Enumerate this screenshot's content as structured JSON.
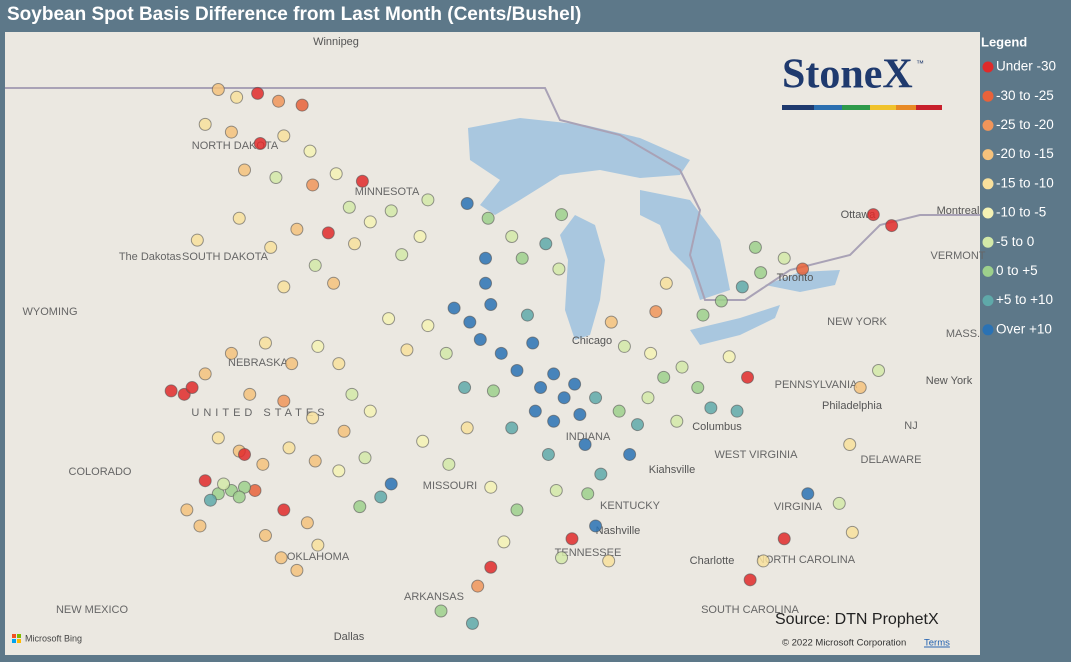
{
  "title": "Soybean Spot Basis Difference from Last Month (Cents/Bushel)",
  "legend": {
    "title": "Legend",
    "items": [
      {
        "label": "Under -30",
        "color": "#e02a2a"
      },
      {
        "label": "-30 to -25",
        "color": "#e8623a"
      },
      {
        "label": "-25 to -20",
        "color": "#f0955a"
      },
      {
        "label": "-20 to -15",
        "color": "#f5c27c"
      },
      {
        "label": "-15 to -10",
        "color": "#f8e09c"
      },
      {
        "label": "-10 to -5",
        "color": "#f4f2b4"
      },
      {
        "label": "-5 to 0",
        "color": "#d3e9a8"
      },
      {
        "label": "0 to +5",
        "color": "#9dd08c"
      },
      {
        "label": "+5 to +10",
        "color": "#5fa9a9"
      },
      {
        "label": "Over +10",
        "color": "#2a72b4"
      }
    ]
  },
  "logo": {
    "name": "StoneX",
    "mark": "™"
  },
  "labels": [
    "Winnipeg",
    "NORTH DAKOTA",
    "MINNESOTA",
    "The Dakotas",
    "SOUTH DAKOTA",
    "WYOMING",
    "NEBRASKA",
    "UNITED STATES",
    "COLORADO",
    "MISSOURI",
    "KENTUCKY",
    "TENNESSEE",
    "OKLAHOMA",
    "ARKANSAS",
    "NEW MEXICO",
    "Dallas",
    "Chicago",
    "Ottawa",
    "Montreal",
    "VERMONT",
    "Toronto",
    "NEW YORK",
    "MASS.",
    "PENNSYLVANIA",
    "New York",
    "Philadelphia",
    "NJ",
    "Columbus",
    "INDIANA",
    "WEST VIRGINIA",
    "DELAWARE",
    "Kiahsville",
    "VIRGINIA",
    "Nashville",
    "Charlotte",
    "NORTH CAROLINA",
    "SOUTH CAROLINA"
  ],
  "source": "Source: DTN ProphetX",
  "copyright": "© 2022 Microsoft Corporation",
  "terms": "Terms",
  "attribution": "Microsoft Bing",
  "points": [
    [
      -101,
      48.7,
      3
    ],
    [
      -100.3,
      48.5,
      4
    ],
    [
      -99.5,
      48.6,
      0
    ],
    [
      -98.7,
      48.4,
      2
    ],
    [
      -97.8,
      48.3,
      1
    ],
    [
      -100.5,
      47.6,
      3
    ],
    [
      -99.4,
      47.3,
      0
    ],
    [
      -98.5,
      47.5,
      4
    ],
    [
      -97.5,
      47.1,
      5
    ],
    [
      -100,
      46.6,
      3
    ],
    [
      -98.8,
      46.4,
      6
    ],
    [
      -97.4,
      46.2,
      2
    ],
    [
      -101.5,
      47.8,
      4
    ],
    [
      -96.5,
      46.5,
      5
    ],
    [
      -96,
      45.6,
      6
    ],
    [
      -95.2,
      45.2,
      5
    ],
    [
      -94.4,
      45.5,
      6
    ],
    [
      -95.5,
      46.3,
      0
    ],
    [
      -98,
      45,
      3
    ],
    [
      -99,
      44.5,
      4
    ],
    [
      -97.3,
      44,
      6
    ],
    [
      -96.6,
      43.5,
      3
    ],
    [
      -95.8,
      44.6,
      4
    ],
    [
      -98.5,
      43.4,
      4
    ],
    [
      -100.2,
      45.3,
      4
    ],
    [
      -101.8,
      44.7,
      4
    ],
    [
      -96.8,
      44.9,
      0
    ],
    [
      -94,
      44.3,
      6
    ],
    [
      -93.3,
      44.8,
      5
    ],
    [
      -93,
      45.8,
      6
    ],
    [
      -91.5,
      45.7,
      9
    ],
    [
      -90.7,
      45.3,
      7
    ],
    [
      -89.8,
      44.8,
      6
    ],
    [
      -89.4,
      44.2,
      7
    ],
    [
      -88.5,
      44.6,
      8
    ],
    [
      -88.0,
      43.9,
      6
    ],
    [
      -90.8,
      44.2,
      9
    ],
    [
      -87.9,
      45.4,
      7
    ],
    [
      -92,
      42.8,
      9
    ],
    [
      -91.4,
      42.4,
      9
    ],
    [
      -91,
      41.9,
      9
    ],
    [
      -90.6,
      42.9,
      9
    ],
    [
      -90.2,
      41.5,
      9
    ],
    [
      -89.6,
      41,
      9
    ],
    [
      -89,
      41.8,
      9
    ],
    [
      -88.7,
      40.5,
      9
    ],
    [
      -88.2,
      40.9,
      9
    ],
    [
      -87.8,
      40.2,
      9
    ],
    [
      -87.4,
      40.6,
      9
    ],
    [
      -90.8,
      43.5,
      9
    ],
    [
      -89.2,
      42.6,
      8
    ],
    [
      -88.9,
      39.8,
      9
    ],
    [
      -88.2,
      39.5,
      9
    ],
    [
      -89.8,
      39.3,
      8
    ],
    [
      -90.5,
      40.4,
      7
    ],
    [
      -92.3,
      41.5,
      6
    ],
    [
      -93,
      42.3,
      5
    ],
    [
      -93.8,
      41.6,
      4
    ],
    [
      -94.5,
      42.5,
      5
    ],
    [
      -91.6,
      40.5,
      8
    ],
    [
      -87.2,
      39.7,
      9
    ],
    [
      -86.6,
      40.2,
      8
    ],
    [
      -87,
      38.8,
      9
    ],
    [
      -88.4,
      38.5,
      8
    ],
    [
      -100.5,
      41.5,
      3
    ],
    [
      -99.2,
      41.8,
      4
    ],
    [
      -98.2,
      41.2,
      3
    ],
    [
      -97.2,
      41.7,
      5
    ],
    [
      -96.4,
      41.2,
      4
    ],
    [
      -95.9,
      40.3,
      6
    ],
    [
      -99.8,
      40.3,
      3
    ],
    [
      -98.5,
      40.1,
      2
    ],
    [
      -97.4,
      39.6,
      4
    ],
    [
      -96.2,
      39.2,
      3
    ],
    [
      -95.2,
      39.8,
      5
    ],
    [
      -101.5,
      40.9,
      3
    ],
    [
      -101,
      39,
      4
    ],
    [
      -100.2,
      38.6,
      3
    ],
    [
      -99.3,
      38.2,
      3
    ],
    [
      -98.3,
      38.7,
      4
    ],
    [
      -97.3,
      38.3,
      3
    ],
    [
      -96.4,
      38,
      5
    ],
    [
      -95.4,
      38.4,
      6
    ],
    [
      -94.4,
      37.6,
      9
    ],
    [
      -94.8,
      37.2,
      8
    ],
    [
      -95.6,
      36.9,
      7
    ],
    [
      -99.6,
      37.4,
      1
    ],
    [
      -98.5,
      36.8,
      0
    ],
    [
      -97.6,
      36.4,
      3
    ],
    [
      -97.2,
      35.7,
      4
    ],
    [
      -98.6,
      35.3,
      3
    ],
    [
      -99.2,
      36,
      3
    ],
    [
      -98,
      34.9,
      3
    ],
    [
      -102.8,
      40.4,
      0
    ],
    [
      -102.3,
      40.3,
      0
    ],
    [
      -102,
      40.5,
      0
    ],
    [
      -101.5,
      37.7,
      0
    ],
    [
      -101,
      37.3,
      7
    ],
    [
      -100.5,
      37.4,
      7
    ],
    [
      -100,
      37.5,
      7
    ],
    [
      -101.3,
      37.1,
      8
    ],
    [
      -100.8,
      37.6,
      6
    ],
    [
      -100.2,
      37.2,
      7
    ],
    [
      -102.2,
      36.8,
      3
    ],
    [
      -101.7,
      36.3,
      3
    ],
    [
      -100,
      38.5,
      0
    ],
    [
      -93.2,
      38.9,
      5
    ],
    [
      -92.2,
      38.2,
      6
    ],
    [
      -91.5,
      39.3,
      4
    ],
    [
      -90.6,
      37.5,
      5
    ],
    [
      -89.6,
      36.8,
      7
    ],
    [
      -90.1,
      35.8,
      5
    ],
    [
      -90.6,
      35,
      0
    ],
    [
      -91.1,
      34.4,
      2
    ],
    [
      -92.5,
      33.6,
      7
    ],
    [
      -91.3,
      33.2,
      8
    ],
    [
      -88.1,
      37.4,
      6
    ],
    [
      -86.9,
      37.3,
      7
    ],
    [
      -86.4,
      37.9,
      8
    ],
    [
      -85.3,
      38.5,
      9
    ],
    [
      -86.6,
      36.3,
      9
    ],
    [
      -87.5,
      35.9,
      0
    ],
    [
      -87.9,
      35.3,
      6
    ],
    [
      -86.1,
      35.2,
      4
    ],
    [
      -85.7,
      39.8,
      7
    ],
    [
      -85,
      39.4,
      8
    ],
    [
      -84.6,
      40.2,
      6
    ],
    [
      -84,
      40.8,
      7
    ],
    [
      -83.3,
      41.1,
      6
    ],
    [
      -82.7,
      40.5,
      7
    ],
    [
      -82.2,
      39.9,
      8
    ],
    [
      -83.5,
      39.5,
      6
    ],
    [
      -84.5,
      41.5,
      5
    ],
    [
      -85.5,
      41.7,
      6
    ],
    [
      -86,
      42.4,
      3
    ],
    [
      -84.3,
      42.7,
      2
    ],
    [
      -83.9,
      43.5,
      4
    ],
    [
      -80.8,
      40.8,
      0
    ],
    [
      -81.5,
      41.4,
      5
    ],
    [
      -81.2,
      39.8,
      8
    ],
    [
      -82.5,
      42.6,
      7
    ],
    [
      -81.8,
      43,
      7
    ],
    [
      -81,
      43.4,
      8
    ],
    [
      -80.3,
      43.8,
      7
    ],
    [
      -79.4,
      44.2,
      6
    ],
    [
      -80.5,
      44.5,
      7
    ],
    [
      -78.7,
      43.9,
      1
    ],
    [
      -76,
      45.4,
      0
    ],
    [
      -75.3,
      45.1,
      0
    ],
    [
      -78.5,
      37.3,
      9
    ],
    [
      -77.3,
      37,
      6
    ],
    [
      -76.8,
      36.1,
      4
    ],
    [
      -79.4,
      35.9,
      0
    ],
    [
      -80.7,
      34.6,
      0
    ],
    [
      -80.2,
      35.2,
      4
    ],
    [
      -76.9,
      38.8,
      4
    ],
    [
      -76.5,
      40.5,
      3
    ],
    [
      -75.8,
      41,
      6
    ]
  ]
}
